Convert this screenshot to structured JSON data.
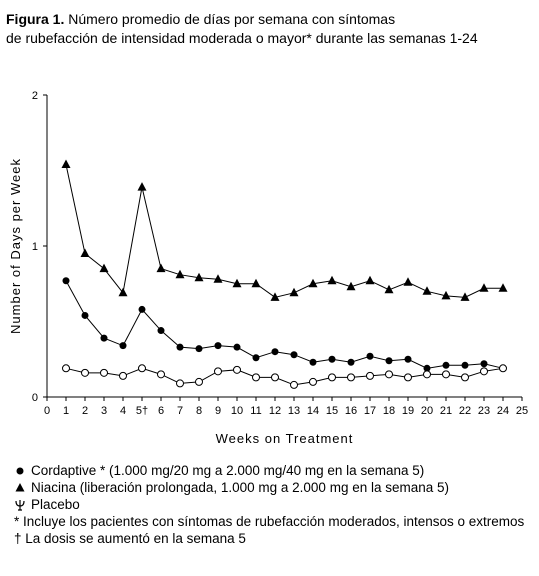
{
  "chart_data": {
    "type": "line",
    "title_label": "Figura 1.",
    "title": [
      "Número promedio de días por semana con síntomas",
      "de rubefacción de intensidad moderada o mayor* durante las semanas 1-24"
    ],
    "x_label": "Weeks on Treatment",
    "y_label": "Number of Days per Week",
    "x": [
      1,
      2,
      3,
      4,
      5,
      6,
      7,
      8,
      9,
      10,
      11,
      12,
      13,
      14,
      15,
      16,
      17,
      18,
      19,
      20,
      21,
      22,
      23,
      24
    ],
    "xlim": [
      0,
      25
    ],
    "xticks": [
      0,
      1,
      2,
      3,
      4,
      {
        "value": 5,
        "label": "5†"
      },
      6,
      7,
      8,
      9,
      10,
      11,
      12,
      13,
      14,
      15,
      16,
      17,
      18,
      19,
      20,
      21,
      22,
      23,
      24,
      25
    ],
    "ylim": [
      0,
      2
    ],
    "yticks": [
      0,
      1,
      2
    ],
    "series": [
      {
        "name": "Cordaptive * (1.000 mg/20 mg a 2.000 mg/40 mg en la semana 5)",
        "color": "#000000",
        "marker": "filled-circle",
        "values": [
          0.77,
          0.54,
          0.39,
          0.34,
          0.58,
          0.44,
          0.33,
          0.32,
          0.34,
          0.33,
          0.26,
          0.3,
          0.28,
          0.23,
          0.25,
          0.23,
          0.27,
          0.24,
          0.25,
          0.19,
          0.21,
          0.21,
          0.22,
          0.19
        ]
      },
      {
        "name": "Niacina (liberación prolongada, 1.000 mg a 2.000 mg en la semana 5)",
        "color": "#000000",
        "marker": "triangle",
        "values": [
          1.54,
          0.95,
          0.85,
          0.69,
          1.39,
          0.85,
          0.81,
          0.79,
          0.78,
          0.75,
          0.75,
          0.66,
          0.69,
          0.75,
          0.77,
          0.73,
          0.77,
          0.71,
          0.76,
          0.7,
          0.67,
          0.66,
          0.72,
          0.72
        ]
      },
      {
        "name": "Placebo",
        "color": "#000000",
        "marker": "open-circle",
        "values": [
          0.19,
          0.16,
          0.16,
          0.14,
          0.19,
          0.15,
          0.09,
          0.1,
          0.17,
          0.18,
          0.13,
          0.13,
          0.08,
          0.1,
          0.13,
          0.13,
          0.14,
          0.15,
          0.13,
          0.15,
          0.15,
          0.13,
          0.17,
          0.19
        ]
      }
    ],
    "footnotes": [
      "* Incluye los pacientes con síntomas de rubefacción moderados, intensos o extremos",
      "† La dosis se aumentó en la semana 5"
    ]
  }
}
